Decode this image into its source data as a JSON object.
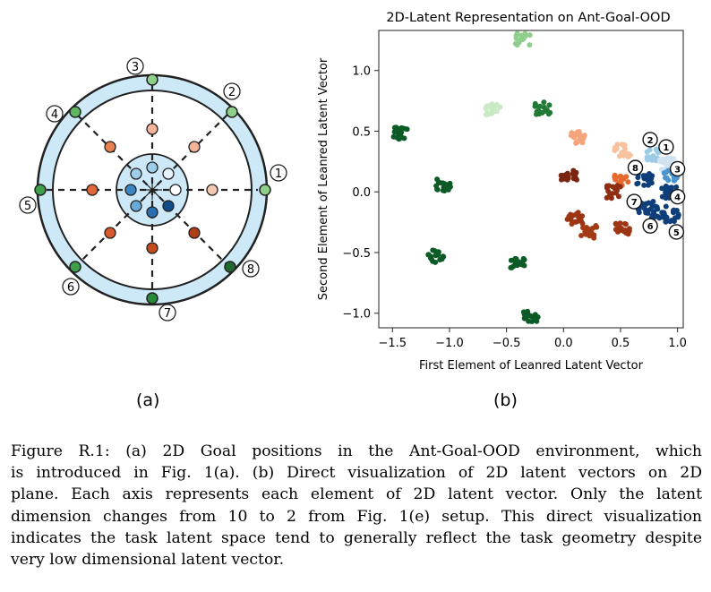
{
  "panel_a": {
    "goal_numbers": [
      "1",
      "2",
      "3",
      "4",
      "5",
      "6",
      "7",
      "8"
    ],
    "colors": {
      "ring_fill": "#cde9f7",
      "outer_goal_green": "#8ed08a",
      "outer_goal_dark": "#1f7a35",
      "mid_orange_light": "#f4b49a",
      "mid_orange": "#e0663a",
      "mid_orange_dark": "#c44a1c",
      "inner_blue_light": "#9fcde9",
      "inner_blue": "#3d86c4",
      "inner_blue_dark": "#0f4c8a"
    }
  },
  "panel_b": {
    "chart_data": {
      "type": "scatter",
      "title": "2D-Latent Representation on Ant-Goal-OOD",
      "xlabel": "First Element of Leanred Latent Vector",
      "ylabel": "Second Element of Leanred Latent Vector",
      "xlim": [
        -1.62,
        1.05
      ],
      "ylim": [
        -1.12,
        1.33
      ],
      "xticks": [
        "-1.5",
        "-1.0",
        "-0.5",
        "0.0",
        "0.5",
        "1.0"
      ],
      "xtick_values": [
        -1.5,
        -1.0,
        -0.5,
        0.0,
        0.5,
        1.0
      ],
      "yticks": [
        "-1.0",
        "-0.5",
        "0.0",
        "0.5",
        "1.0"
      ],
      "ytick_values": [
        -1.0,
        -0.5,
        0.0,
        0.5,
        1.0
      ],
      "clusters": [
        {
          "color": "#8fce8d",
          "x": -0.36,
          "y": 1.26
        },
        {
          "color": "#c9eac4",
          "x": -0.62,
          "y": 0.68
        },
        {
          "color": "#1f7a35",
          "x": -0.18,
          "y": 0.69
        },
        {
          "color": "#0c5a26",
          "x": -1.42,
          "y": 0.48
        },
        {
          "color": "#0c5a26",
          "x": -1.05,
          "y": 0.06
        },
        {
          "color": "#0c5a26",
          "x": -1.12,
          "y": -0.53
        },
        {
          "color": "#0c5a26",
          "x": -0.4,
          "y": -0.6
        },
        {
          "color": "#0c5a26",
          "x": -0.29,
          "y": -1.02
        },
        {
          "color": "#f4a57c",
          "x": 0.13,
          "y": 0.45
        },
        {
          "color": "#f7c29d",
          "x": 0.52,
          "y": 0.34
        },
        {
          "color": "#e8692e",
          "x": 0.51,
          "y": 0.1
        },
        {
          "color": "#7a2510",
          "x": 0.05,
          "y": 0.13
        },
        {
          "color": "#8f2e12",
          "x": 0.45,
          "y": 0.0
        },
        {
          "color": "#9d3513",
          "x": 0.1,
          "y": -0.22
        },
        {
          "color": "#a33c14",
          "x": 0.22,
          "y": -0.33
        },
        {
          "color": "#9d3513",
          "x": 0.52,
          "y": -0.3
        },
        {
          "color": "#9ccbe6",
          "x": 0.79,
          "y": 0.3
        },
        {
          "color": "#cfe3f2",
          "x": 0.9,
          "y": 0.23
        },
        {
          "color": "#4a95cf",
          "x": 0.95,
          "y": 0.14
        },
        {
          "color": "#0f3f7a",
          "x": 0.71,
          "y": 0.1
        },
        {
          "color": "#0f3f7a",
          "x": 0.93,
          "y": 0.0
        },
        {
          "color": "#0f3f7a",
          "x": 0.72,
          "y": -0.13
        },
        {
          "color": "#0f3f7a",
          "x": 0.83,
          "y": -0.17
        },
        {
          "color": "#0f3f7a",
          "x": 0.94,
          "y": -0.2
        }
      ],
      "annotations": [
        "2",
        "1",
        "8",
        "3",
        "7",
        "4",
        "6",
        "5"
      ]
    }
  },
  "labels": {
    "a": "(a)",
    "b": "(b)"
  },
  "caption": {
    "line1": "Figure R.1: (a) 2D Goal positions in the Ant-Goal-OOD environment, which",
    "line2": "is introduced in Fig. 1(a). (b) Direct visualization of 2D latent vectors on 2D",
    "line3": "plane. Each axis represents each element of 2D latent vector. Only the latent",
    "line4": "dimension changes from 10 to 2 from Fig. 1(e) setup. This direct visualization",
    "line5": "indicates the task latent space tend to generally reflect the task geometry despite",
    "line6": "very low dimensional latent vector."
  }
}
